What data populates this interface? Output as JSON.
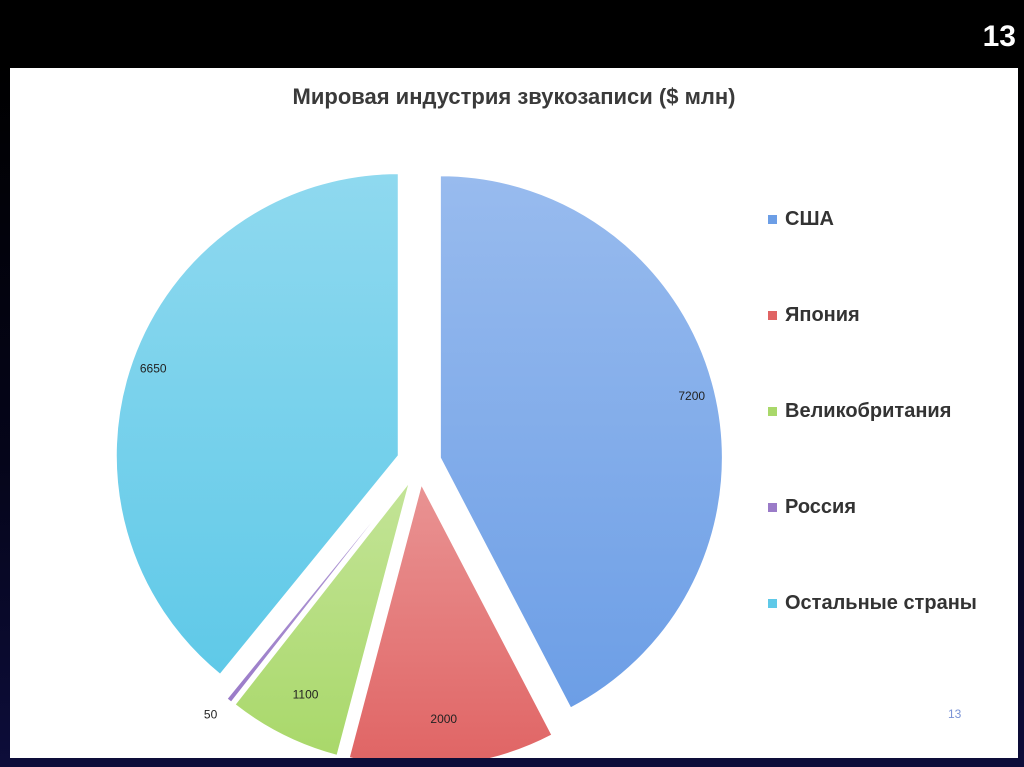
{
  "slide": {
    "number": "13",
    "footnote": "13"
  },
  "chart_data": {
    "type": "pie",
    "title": "Мировая индустрия звукозаписи ($ млн)",
    "categories": [
      "США",
      "Япония",
      "Великобритания",
      "Россия",
      "Остальные страны"
    ],
    "values": [
      7200,
      2000,
      1100,
      50,
      6650
    ],
    "data_labels": [
      "7200",
      "2000",
      "1100",
      "50",
      "6650"
    ],
    "colors": [
      "#6c9ee6",
      "#e06464",
      "#a9d86a",
      "#9a7bc8",
      "#5fc9e8"
    ],
    "legend_position": "right",
    "exploded": true
  }
}
